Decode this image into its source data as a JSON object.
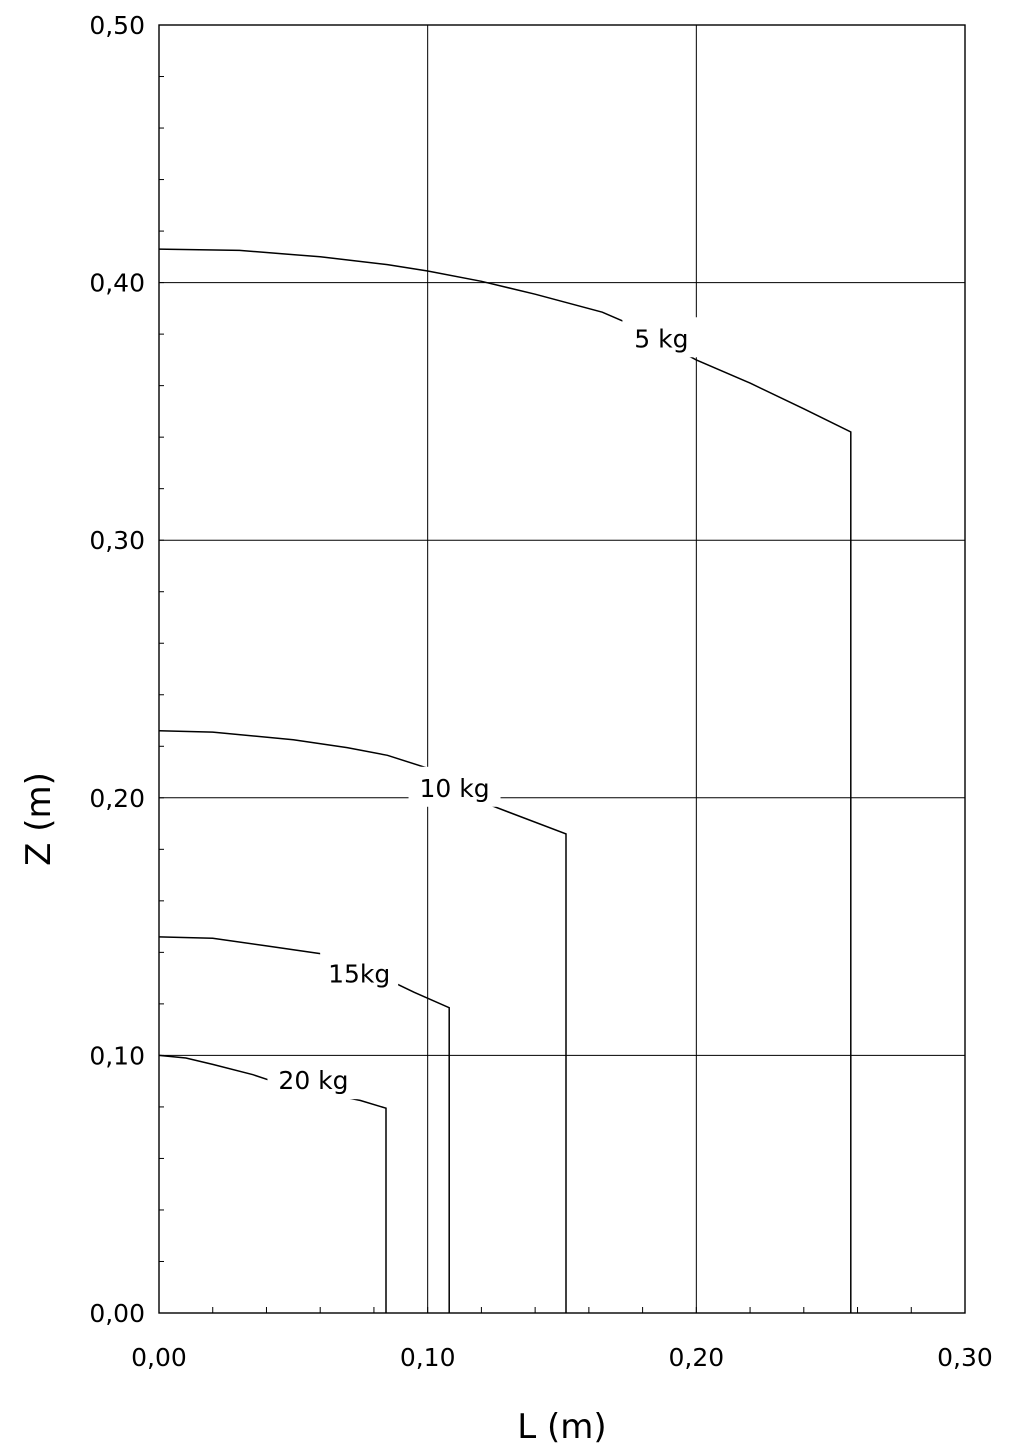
{
  "chart_data": {
    "type": "line",
    "title": "",
    "xlabel": "L (m)",
    "ylabel": "Z (m)",
    "xlim": [
      0,
      0.3
    ],
    "ylim": [
      0,
      0.5
    ],
    "grid": true,
    "x_ticks": [
      0.0,
      0.1,
      0.2,
      0.3
    ],
    "x_tick_labels": [
      "0,00",
      "0,10",
      "0,20",
      "0,30"
    ],
    "y_ticks": [
      0.0,
      0.1,
      0.2,
      0.3,
      0.4,
      0.5
    ],
    "y_tick_labels": [
      "0,00",
      "0,10",
      "0,20",
      "0,30",
      "0,40",
      "0,50"
    ],
    "series": [
      {
        "name": "5 kg",
        "label_at": [
          0.187,
          0.378
        ],
        "x": [
          0.0,
          0.03,
          0.06,
          0.085,
          0.1,
          0.12,
          0.14,
          0.165,
          0.175,
          0.2,
          0.22,
          0.24,
          0.2575,
          0.2575
        ],
        "y": [
          0.413,
          0.4125,
          0.41,
          0.407,
          0.4045,
          0.4005,
          0.3955,
          0.3885,
          0.384,
          0.37,
          0.361,
          0.351,
          0.342,
          0.0
        ]
      },
      {
        "name": "10 kg",
        "label_at": [
          0.11,
          0.2035
        ],
        "x": [
          0.0,
          0.02,
          0.05,
          0.07,
          0.085,
          0.1,
          0.12,
          0.13,
          0.1515,
          0.1515
        ],
        "y": [
          0.226,
          0.2255,
          0.2225,
          0.2195,
          0.2165,
          0.2115,
          0.1985,
          0.1945,
          0.186,
          0.0
        ]
      },
      {
        "name": "15kg",
        "label_at": [
          0.0745,
          0.1315
        ],
        "x": [
          0.0,
          0.02,
          0.04,
          0.06,
          0.07,
          0.095,
          0.108,
          0.108
        ],
        "y": [
          0.146,
          0.1455,
          0.1425,
          0.1395,
          0.137,
          0.1245,
          0.1185,
          0.0
        ]
      },
      {
        "name": "20 kg",
        "label_at": [
          0.0575,
          0.09
        ],
        "x": [
          0.0,
          0.01,
          0.02,
          0.035,
          0.045,
          0.075,
          0.0845,
          0.0845
        ],
        "y": [
          0.1,
          0.099,
          0.0965,
          0.0925,
          0.089,
          0.0825,
          0.0795,
          0.0
        ]
      }
    ]
  }
}
